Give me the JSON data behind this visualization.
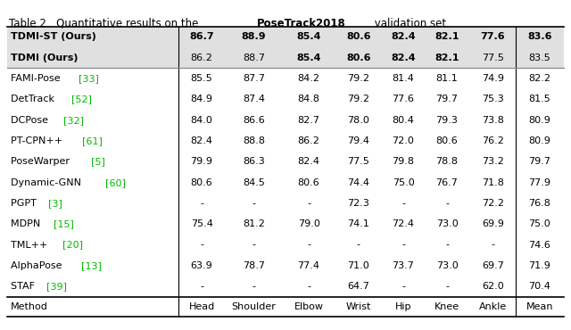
{
  "columns": [
    "Method",
    "Head",
    "Shoulder",
    "Elbow",
    "Wrist",
    "Hip",
    "Knee",
    "Ankle",
    "Mean"
  ],
  "rows": [
    {
      "method_base": "STAF ",
      "method_ref": "[39]",
      "values": [
        "-",
        "-",
        "-",
        "64.7",
        "-",
        "-",
        "62.0",
        "70.4"
      ],
      "bold_vals": [],
      "is_ours": false
    },
    {
      "method_base": "AlphaPose ",
      "method_ref": "[13]",
      "values": [
        "63.9",
        "78.7",
        "77.4",
        "71.0",
        "73.7",
        "73.0",
        "69.7",
        "71.9"
      ],
      "bold_vals": [],
      "is_ours": false
    },
    {
      "method_base": "TML++ ",
      "method_ref": "[20]",
      "values": [
        "-",
        "-",
        "-",
        "-",
        "-",
        "-",
        "-",
        "74.6"
      ],
      "bold_vals": [],
      "is_ours": false
    },
    {
      "method_base": "MDPN ",
      "method_ref": "[15]",
      "values": [
        "75.4",
        "81.2",
        "79.0",
        "74.1",
        "72.4",
        "73.0",
        "69.9",
        "75.0"
      ],
      "bold_vals": [],
      "is_ours": false
    },
    {
      "method_base": "PGPT ",
      "method_ref": "[3]",
      "values": [
        "-",
        "-",
        "-",
        "72.3",
        "-",
        "-",
        "72.2",
        "76.8"
      ],
      "bold_vals": [],
      "is_ours": false
    },
    {
      "method_base": "Dynamic-GNN ",
      "method_ref": "[60]",
      "values": [
        "80.6",
        "84.5",
        "80.6",
        "74.4",
        "75.0",
        "76.7",
        "71.8",
        "77.9"
      ],
      "bold_vals": [],
      "is_ours": false
    },
    {
      "method_base": "PoseWarper ",
      "method_ref": "[5]",
      "values": [
        "79.9",
        "86.3",
        "82.4",
        "77.5",
        "79.8",
        "78.8",
        "73.2",
        "79.7"
      ],
      "bold_vals": [],
      "is_ours": false
    },
    {
      "method_base": "PT-CPN++ ",
      "method_ref": "[61]",
      "values": [
        "82.4",
        "88.8",
        "86.2",
        "79.4",
        "72.0",
        "80.6",
        "76.2",
        "80.9"
      ],
      "bold_vals": [],
      "is_ours": false
    },
    {
      "method_base": "DCPose ",
      "method_ref": "[32]",
      "values": [
        "84.0",
        "86.6",
        "82.7",
        "78.0",
        "80.4",
        "79.3",
        "73.8",
        "80.9"
      ],
      "bold_vals": [],
      "is_ours": false
    },
    {
      "method_base": "DetTrack ",
      "method_ref": "[52]",
      "values": [
        "84.9",
        "87.4",
        "84.8",
        "79.2",
        "77.6",
        "79.7",
        "75.3",
        "81.5"
      ],
      "bold_vals": [],
      "is_ours": false
    },
    {
      "method_base": "FAMI-Pose ",
      "method_ref": "[33]",
      "values": [
        "85.5",
        "87.7",
        "84.2",
        "79.2",
        "81.4",
        "81.1",
        "74.9",
        "82.2"
      ],
      "bold_vals": [],
      "is_ours": false
    },
    {
      "method_base": "TDMI (Ours)",
      "method_ref": null,
      "values": [
        "86.2",
        "88.7",
        "85.4",
        "80.6",
        "82.4",
        "82.1",
        "77.5",
        "83.5"
      ],
      "bold_vals": [
        2,
        3,
        4,
        5
      ],
      "is_ours": true
    },
    {
      "method_base": "TDMI-ST (Ours)",
      "method_ref": null,
      "values": [
        "86.7",
        "88.9",
        "85.4",
        "80.6",
        "82.4",
        "82.1",
        "77.6",
        "83.6"
      ],
      "bold_vals": [
        0,
        1,
        2,
        3,
        4,
        5,
        6,
        7
      ],
      "is_ours": true
    }
  ],
  "caption_normal": "Table 2.  Quantitative results on the ",
  "caption_bold": "PoseTrack2018",
  "caption_after": " validation set.",
  "ours_bg_color": "#e0e0e0",
  "ref_color": "#00bb00",
  "font_size": 8.0,
  "caption_font_size": 8.5,
  "col_widths": [
    2.8,
    0.75,
    0.95,
    0.85,
    0.78,
    0.68,
    0.75,
    0.75,
    0.78
  ]
}
